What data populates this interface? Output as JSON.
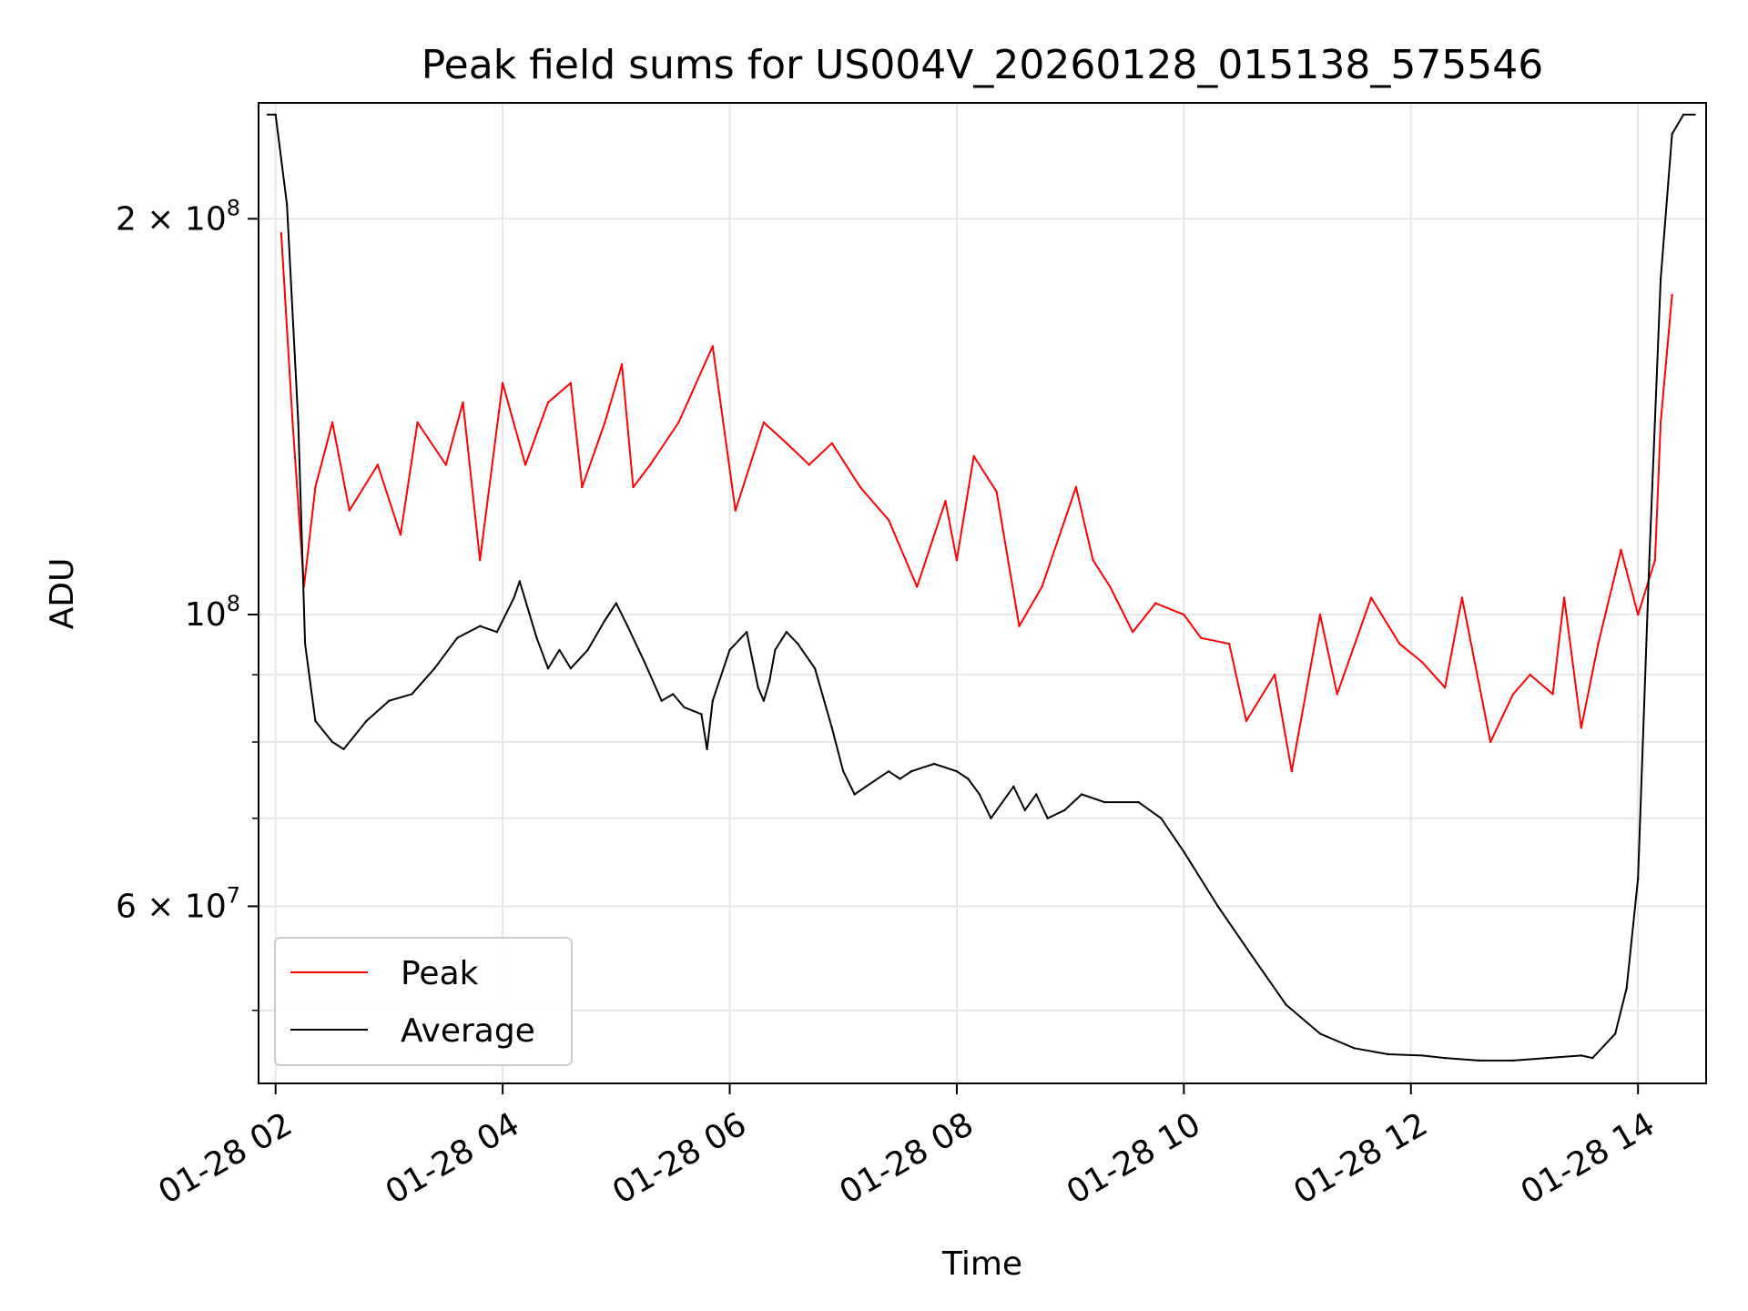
{
  "chart_data": {
    "type": "line",
    "title": "Peak field sums for US004V_20260128_015138_575546",
    "xlabel": "Time",
    "ylabel": "ADU",
    "yscale": "log",
    "xlim": [
      1.85,
      14.6
    ],
    "ylim": [
      44000000,
      245000000
    ],
    "x_units": "hours since 2026-01-28 00:00",
    "x_ticks": [
      {
        "value": 2,
        "label": "01-28 02"
      },
      {
        "value": 4,
        "label": "01-28 04"
      },
      {
        "value": 6,
        "label": "01-28 06"
      },
      {
        "value": 8,
        "label": "01-28 08"
      },
      {
        "value": 10,
        "label": "01-28 10"
      },
      {
        "value": 12,
        "label": "01-28 12"
      },
      {
        "value": 14,
        "label": "01-28 14"
      }
    ],
    "y_major_ticks": [
      {
        "value": 60000000,
        "label": "6 × 10⁷",
        "base": "6 × 10",
        "exp": "7"
      },
      {
        "value": 100000000,
        "label": "10⁸",
        "base": "10",
        "exp": "8"
      },
      {
        "value": 200000000,
        "label": "2 × 10⁸",
        "base": "2 × 10",
        "exp": "8"
      }
    ],
    "y_minor_ticks": [
      50000000,
      70000000,
      80000000,
      90000000
    ],
    "grid": true,
    "legend": {
      "position": "lower-left",
      "entries": [
        "Peak",
        "Average"
      ]
    },
    "series": [
      {
        "name": "Average",
        "color": "#000000",
        "x": [
          1.93,
          2.0,
          2.1,
          2.2,
          2.26,
          2.35,
          2.5,
          2.6,
          2.8,
          3.0,
          3.2,
          3.4,
          3.6,
          3.8,
          3.95,
          4.1,
          4.15,
          4.3,
          4.4,
          4.5,
          4.6,
          4.75,
          4.9,
          5.0,
          5.1,
          5.25,
          5.4,
          5.5,
          5.6,
          5.75,
          5.8,
          5.85,
          6.0,
          6.1,
          6.15,
          6.25,
          6.3,
          6.35,
          6.4,
          6.5,
          6.6,
          6.75,
          6.9,
          7.0,
          7.1,
          7.2,
          7.4,
          7.5,
          7.6,
          7.8,
          8.0,
          8.1,
          8.2,
          8.3,
          8.5,
          8.6,
          8.7,
          8.8,
          8.95,
          9.1,
          9.3,
          9.6,
          9.8,
          10.0,
          10.3,
          10.6,
          10.9,
          11.2,
          11.5,
          11.8,
          12.1,
          12.3,
          12.6,
          12.9,
          13.2,
          13.5,
          13.6,
          13.8,
          13.9,
          14.0,
          14.1,
          14.2,
          14.3,
          14.4,
          14.5
        ],
        "y": [
          240000000,
          240000000,
          205000000,
          140000000,
          95000000,
          83000000,
          80000000,
          79000000,
          83000000,
          86000000,
          87000000,
          91000000,
          96000000,
          98000000,
          97000000,
          103000000,
          106000000,
          96000000,
          91000000,
          94000000,
          91000000,
          94000000,
          99000000,
          102000000,
          98000000,
          92000000,
          86000000,
          87000000,
          85000000,
          84000000,
          79000000,
          86000000,
          94000000,
          96000000,
          97000000,
          88000000,
          86000000,
          89000000,
          94000000,
          97000000,
          95000000,
          91000000,
          82000000,
          76000000,
          73000000,
          74000000,
          76000000,
          75000000,
          76000000,
          77000000,
          76000000,
          75000000,
          73000000,
          70000000,
          74000000,
          71000000,
          73000000,
          70000000,
          71000000,
          73000000,
          72000000,
          72000000,
          70000000,
          66000000,
          60000000,
          55000000,
          50500000,
          48000000,
          46800000,
          46300000,
          46200000,
          46000000,
          45800000,
          45800000,
          46000000,
          46200000,
          46000000,
          48000000,
          52000000,
          63000000,
          110000000,
          180000000,
          232000000,
          240000000,
          240000000
        ]
      },
      {
        "name": "Peak",
        "color": "#ff0000",
        "x": [
          2.05,
          2.15,
          2.25,
          2.35,
          2.5,
          2.65,
          2.9,
          3.1,
          3.25,
          3.5,
          3.65,
          3.8,
          4.0,
          4.2,
          4.4,
          4.6,
          4.7,
          4.9,
          5.05,
          5.15,
          5.3,
          5.55,
          5.85,
          6.05,
          6.3,
          6.5,
          6.7,
          6.9,
          7.15,
          7.4,
          7.65,
          7.9,
          8.0,
          8.15,
          8.35,
          8.55,
          8.75,
          9.05,
          9.2,
          9.35,
          9.55,
          9.75,
          10.0,
          10.15,
          10.4,
          10.55,
          10.8,
          10.95,
          11.2,
          11.35,
          11.65,
          11.9,
          12.1,
          12.3,
          12.45,
          12.7,
          12.9,
          13.05,
          13.25,
          13.35,
          13.5,
          13.65,
          13.85,
          14.0,
          14.15,
          14.2,
          14.3
        ],
        "y": [
          195000000,
          140000000,
          105000000,
          125000000,
          140000000,
          120000000,
          130000000,
          115000000,
          140000000,
          130000000,
          145000000,
          110000000,
          150000000,
          130000000,
          145000000,
          150000000,
          125000000,
          140000000,
          155000000,
          125000000,
          130000000,
          140000000,
          160000000,
          120000000,
          140000000,
          135000000,
          130000000,
          135000000,
          125000000,
          118000000,
          105000000,
          122000000,
          110000000,
          132000000,
          124000000,
          98000000,
          105000000,
          125000000,
          110000000,
          105000000,
          97000000,
          102000000,
          100000000,
          96000000,
          95000000,
          83000000,
          90000000,
          76000000,
          100000000,
          87000000,
          103000000,
          95000000,
          92000000,
          88000000,
          103000000,
          80000000,
          87000000,
          90000000,
          87000000,
          103000000,
          82000000,
          95000000,
          112000000,
          100000000,
          110000000,
          140000000,
          175000000
        ]
      }
    ]
  }
}
